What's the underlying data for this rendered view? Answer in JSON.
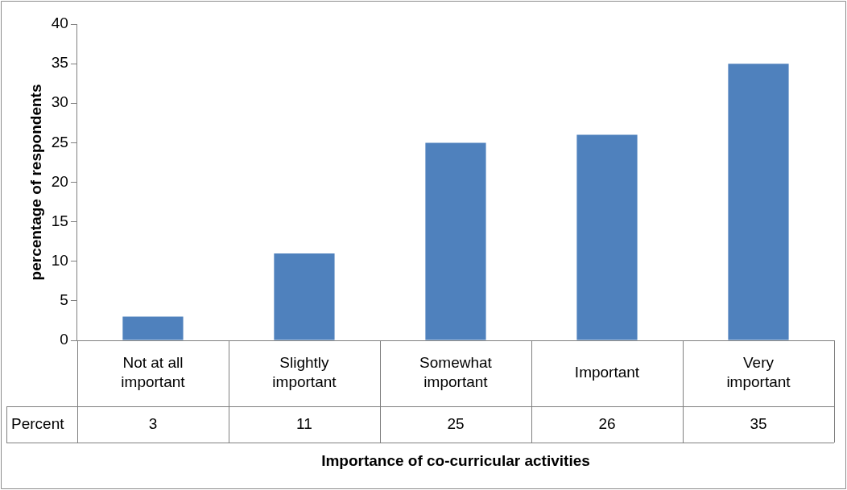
{
  "chart_data": {
    "type": "bar",
    "xlabel": "Importance of co-curricular activities",
    "ylabel": "percentage of respondents",
    "categories": [
      "Not at all important",
      "Slightly important",
      "Somewhat important",
      "Important",
      "Very important"
    ],
    "series": [
      {
        "name": "Percent",
        "color": "#4f81bd",
        "values": [
          3,
          11,
          25,
          26,
          35
        ]
      }
    ],
    "ylim": [
      0,
      40
    ],
    "yticks": [
      0,
      5,
      10,
      15,
      20,
      25,
      30,
      35,
      40
    ],
    "data_labels": true
  }
}
